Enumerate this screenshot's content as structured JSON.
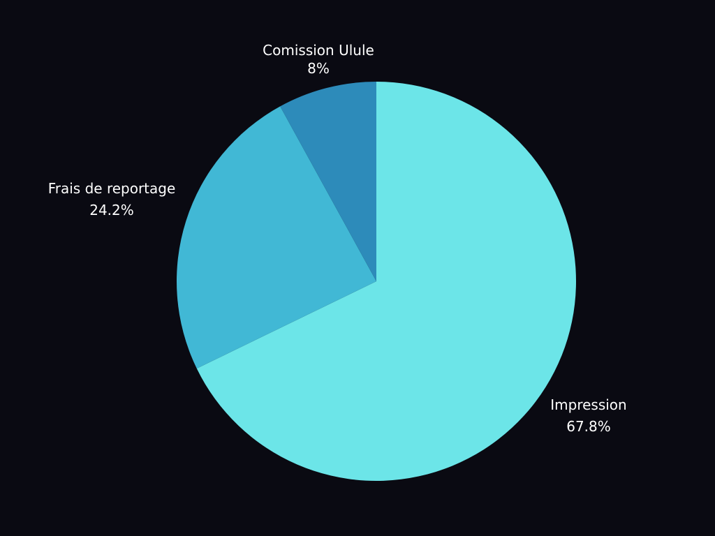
{
  "chart_data": {
    "type": "pie",
    "title": "",
    "slices": [
      {
        "label": "Impression",
        "value": 67.8,
        "value_label": "67.8%",
        "color": "#6ce5e8"
      },
      {
        "label": "Frais de reportage",
        "value": 24.2,
        "value_label": "24.2%",
        "color": "#41b8d5"
      },
      {
        "label": "Comission Ulule",
        "value": 8,
        "value_label": "8%",
        "color": "#2d8bba"
      }
    ],
    "start_direction": "top",
    "direction": "clockwise",
    "legend": "none",
    "background": "#0a0a12"
  }
}
